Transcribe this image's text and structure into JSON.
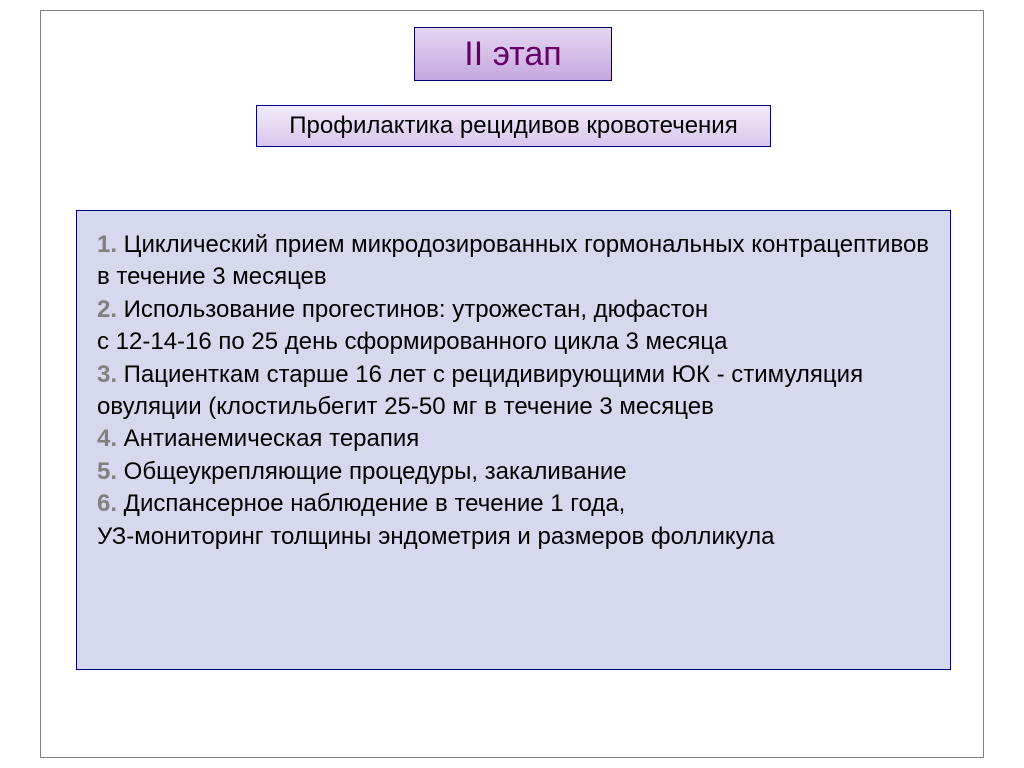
{
  "title": {
    "text": "II этап",
    "bg_gradient_top": "#e5d6f2",
    "bg_gradient_bottom": "#c5a8e0",
    "border_color": "#000066",
    "text_color": "#660066",
    "fontsize": 34
  },
  "subtitle": {
    "text": "Профилактика рецидивов кровотечения",
    "bg_gradient_top": "#f2ebf9",
    "bg_gradient_bottom": "#d9c6ed",
    "border_color": "#000080",
    "text_color": "#000000",
    "fontsize": 24
  },
  "content": {
    "bg_color": "#d6d9ed",
    "border_color": "#000080",
    "fontsize": 24,
    "number_color": "#808080",
    "items": [
      {
        "n": "1.",
        "text": " Циклический прием микродозированных гормональных контрацептивов в течение 3 месяцев"
      },
      {
        "n": "2.",
        "text": " Использование прогестинов: утрожестан, дюфастон",
        "cont": "с 12-14-16 по 25 день сформированного цикла 3 месяца"
      },
      {
        "n": "3.",
        "text": " Пациенткам старше 16 лет с рецидивирующими ЮК - стимуляция овуляции (клостильбегит 25-50 мг в течение 3 месяцев"
      },
      {
        "n": "4.",
        "text": " Антианемическая терапия"
      },
      {
        "n": "5.",
        "text": " Общеукрепляющие процедуры, закаливание"
      },
      {
        "n": "6.",
        "text": " Диспансерное наблюдение в течение 1 года,",
        "cont": "УЗ-мониторинг толщины эндометрия и размеров фолликула"
      }
    ]
  },
  "slide": {
    "border_color": "#808080",
    "bg_color": "#ffffff"
  }
}
